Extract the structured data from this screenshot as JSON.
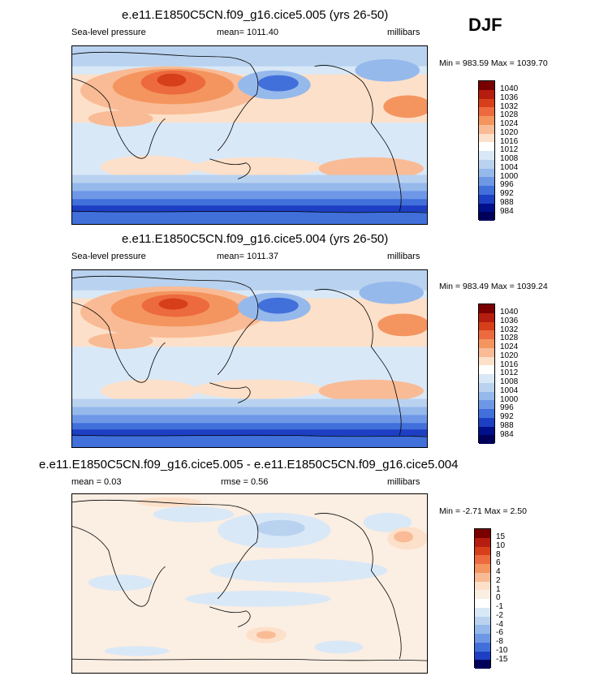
{
  "season": "DJF",
  "panels": [
    {
      "title": "e.e11.E1850C5CN.f09_g16.cice5.005 (yrs 26-50)",
      "left_label": "Sea-level pressure",
      "center_label": "mean= 1011.40",
      "right_label": "millibars",
      "minmax": "Min = 983.59 Max = 1039.70",
      "legend": [
        "1040",
        "1036",
        "1032",
        "1028",
        "1024",
        "1020",
        "1016",
        "1012",
        "1008",
        "1004",
        "1000",
        "996",
        "992",
        "988",
        "984"
      ]
    },
    {
      "title": "e.e11.E1850C5CN.f09_g16.cice5.004 (yrs 26-50)",
      "left_label": "Sea-level pressure",
      "center_label": "mean= 1011.37",
      "right_label": "millibars",
      "minmax": "Min = 983.49 Max = 1039.24",
      "legend": [
        "1040",
        "1036",
        "1032",
        "1028",
        "1024",
        "1020",
        "1016",
        "1012",
        "1008",
        "1004",
        "1000",
        "996",
        "992",
        "988",
        "984"
      ]
    },
    {
      "title": "e.e11.E1850C5CN.f09_g16.cice5.005 - e.e11.E1850C5CN.f09_g16.cice5.004",
      "left_label": "mean =   0.03",
      "center_label": "rmse =   0.56",
      "right_label": "millibars",
      "minmax": "Min =  -2.71 Max =   2.50",
      "legend": [
        "15",
        "10",
        "8",
        "6",
        "4",
        "2",
        "1",
        "0",
        "-1",
        "-2",
        "-4",
        "-6",
        "-8",
        "-10",
        "-15"
      ]
    }
  ],
  "colors": {
    "abs_scale": [
      "#7a0000",
      "#b51d0f",
      "#d73e1a",
      "#ec6a3e",
      "#f4955f",
      "#f9bb95",
      "#fde0c9",
      "#ffffff",
      "#d9e8f7",
      "#b9d2ef",
      "#96b9ec",
      "#6e98e6",
      "#4170da",
      "#1d3fc4",
      "#000f8a",
      "#00005a"
    ],
    "diff_scale": [
      "#7a0000",
      "#b51d0f",
      "#d73e1a",
      "#ec6a3e",
      "#f4955f",
      "#f9bb95",
      "#fde0c9",
      "#fbeee2",
      "#ffffff",
      "#d9e8f7",
      "#b9d2ef",
      "#96b9ec",
      "#6e98e6",
      "#4170da",
      "#1d3fc4",
      "#00005a"
    ]
  }
}
